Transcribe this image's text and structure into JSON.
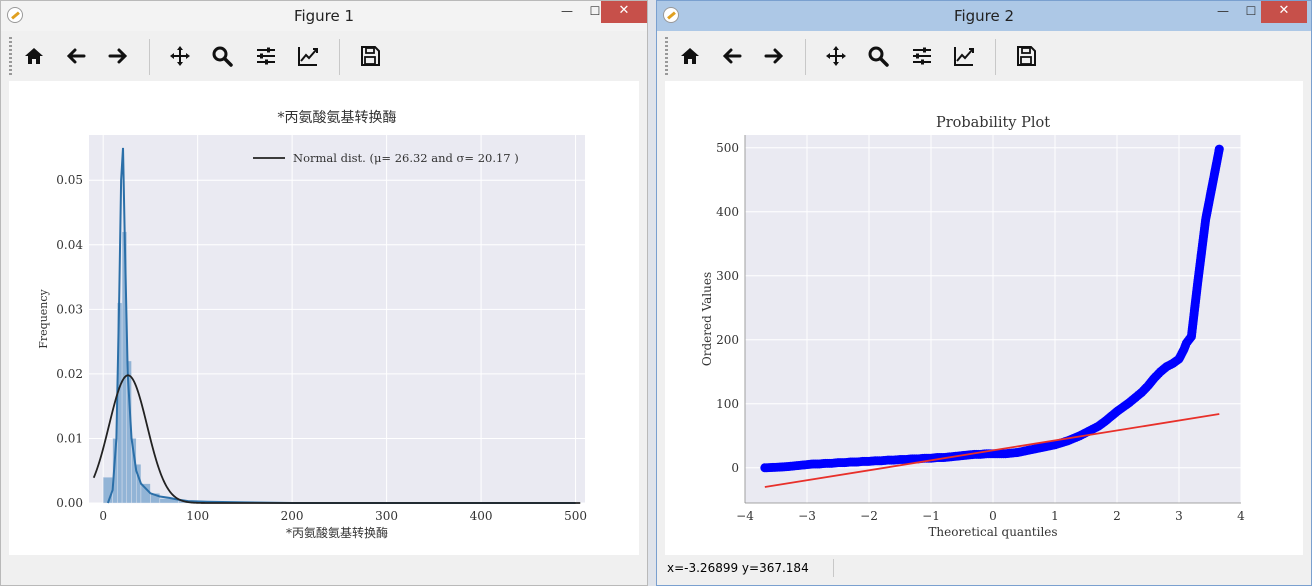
{
  "windows": [
    {
      "title": "Figure 1",
      "status": "",
      "toolbar": [
        "home-icon",
        "back-icon",
        "forward-icon",
        "pan-icon",
        "zoom-icon",
        "configure-icon",
        "edit-axis-icon",
        "save-icon"
      ]
    },
    {
      "title": "Figure 2",
      "status": "x=-3.26899     y=367.184",
      "toolbar": [
        "home-icon",
        "back-icon",
        "forward-icon",
        "pan-icon",
        "zoom-icon",
        "configure-icon",
        "edit-axis-icon",
        "save-icon"
      ]
    }
  ],
  "window_controls": {
    "minimize": "—",
    "maximize": "☐",
    "close": "✕"
  },
  "colors": {
    "hist": "#92b4d6",
    "kde": "#2b6fa8",
    "normal": "#222222",
    "points": "#0000ff",
    "fit": "#e8302a",
    "bg": "#eaeaf2"
  },
  "chart_data": [
    {
      "type": "histogram",
      "title": "*丙氨酸氨基转换酶",
      "xlabel": "*丙氨酸氨基转换酶",
      "ylabel": "Frequency",
      "xlim": [
        -15,
        510
      ],
      "ylim": [
        0,
        0.057
      ],
      "xticks": [
        0,
        100,
        200,
        300,
        400,
        500
      ],
      "yticks": [
        0.0,
        0.01,
        0.02,
        0.03,
        0.04,
        0.05
      ],
      "ytick_labels": [
        "0.00",
        "0.01",
        "0.02",
        "0.03",
        "0.04",
        "0.05"
      ],
      "legend_text": "Normal dist. (μ= 26.32 and σ= 20.17 )",
      "legend_position": "top-right",
      "grid": true,
      "bins": [
        {
          "x0": 0,
          "x1": 10,
          "h": 0.004
        },
        {
          "x0": 10,
          "x1": 15,
          "h": 0.01
        },
        {
          "x0": 15,
          "x1": 20,
          "h": 0.031
        },
        {
          "x0": 20,
          "x1": 25,
          "h": 0.042
        },
        {
          "x0": 25,
          "x1": 30,
          "h": 0.022
        },
        {
          "x0": 30,
          "x1": 35,
          "h": 0.01
        },
        {
          "x0": 35,
          "x1": 40,
          "h": 0.006
        },
        {
          "x0": 40,
          "x1": 50,
          "h": 0.003
        },
        {
          "x0": 50,
          "x1": 60,
          "h": 0.0015
        },
        {
          "x0": 60,
          "x1": 80,
          "h": 0.0007
        },
        {
          "x0": 80,
          "x1": 100,
          "h": 0.0004
        }
      ],
      "kde": [
        [
          5,
          0.0
        ],
        [
          10,
          0.002
        ],
        [
          14,
          0.01
        ],
        [
          17,
          0.032
        ],
        [
          19,
          0.05
        ],
        [
          21,
          0.055
        ],
        [
          23,
          0.04
        ],
        [
          26,
          0.02
        ],
        [
          30,
          0.01
        ],
        [
          35,
          0.005
        ],
        [
          40,
          0.003
        ],
        [
          50,
          0.0015
        ],
        [
          60,
          0.001
        ],
        [
          70,
          0.0008
        ],
        [
          80,
          0.0005
        ],
        [
          90,
          0.0003
        ],
        [
          110,
          0.0002
        ],
        [
          150,
          0.0001
        ],
        [
          200,
          0.0
        ],
        [
          500,
          0.0
        ]
      ],
      "normal": {
        "mu": 26.32,
        "sigma": 20.17,
        "x_from": -10,
        "x_to": 505
      }
    },
    {
      "type": "scatter",
      "title": "Probability Plot",
      "xlabel": "Theoretical quantiles",
      "ylabel": "Ordered Values",
      "xlim": [
        -4,
        4
      ],
      "ylim": [
        -55,
        520
      ],
      "xticks": [
        -4,
        -3,
        -2,
        -1,
        0,
        1,
        2,
        3,
        4
      ],
      "xtick_labels": [
        "−4",
        "−3",
        "−2",
        "−1",
        "0",
        "1",
        "2",
        "3",
        "4"
      ],
      "yticks": [
        0,
        100,
        200,
        300,
        400,
        500
      ],
      "grid": true,
      "points": [
        [
          -3.68,
          0
        ],
        [
          -3.45,
          1
        ],
        [
          -3.3,
          2
        ],
        [
          -3.2,
          3
        ],
        [
          -3.1,
          4
        ],
        [
          -3.0,
          5
        ],
        [
          -2.9,
          6
        ],
        [
          -2.8,
          6
        ],
        [
          -2.7,
          7
        ],
        [
          -2.6,
          7
        ],
        [
          -2.5,
          8
        ],
        [
          -2.4,
          8
        ],
        [
          -2.3,
          9
        ],
        [
          -2.2,
          9
        ],
        [
          -2.1,
          10
        ],
        [
          -2.0,
          10
        ],
        [
          -1.9,
          11
        ],
        [
          -1.8,
          11
        ],
        [
          -1.7,
          12
        ],
        [
          -1.6,
          12
        ],
        [
          -1.5,
          13
        ],
        [
          -1.4,
          13
        ],
        [
          -1.3,
          14
        ],
        [
          -1.2,
          14
        ],
        [
          -1.1,
          15
        ],
        [
          -1.0,
          15
        ],
        [
          -0.9,
          16
        ],
        [
          -0.8,
          16
        ],
        [
          -0.7,
          17
        ],
        [
          -0.6,
          18
        ],
        [
          -0.5,
          19
        ],
        [
          -0.4,
          20
        ],
        [
          -0.3,
          21
        ],
        [
          -0.2,
          21
        ],
        [
          -0.1,
          22
        ],
        [
          0.0,
          22
        ],
        [
          0.1,
          22
        ],
        [
          0.2,
          22
        ],
        [
          0.3,
          23
        ],
        [
          0.4,
          24
        ],
        [
          0.5,
          26
        ],
        [
          0.6,
          28
        ],
        [
          0.7,
          30
        ],
        [
          0.8,
          32
        ],
        [
          0.9,
          34
        ],
        [
          1.0,
          36
        ],
        [
          1.1,
          39
        ],
        [
          1.2,
          42
        ],
        [
          1.3,
          46
        ],
        [
          1.4,
          50
        ],
        [
          1.5,
          55
        ],
        [
          1.6,
          60
        ],
        [
          1.7,
          65
        ],
        [
          1.8,
          72
        ],
        [
          1.9,
          80
        ],
        [
          2.0,
          88
        ],
        [
          2.1,
          95
        ],
        [
          2.2,
          102
        ],
        [
          2.3,
          110
        ],
        [
          2.4,
          118
        ],
        [
          2.5,
          128
        ],
        [
          2.6,
          140
        ],
        [
          2.7,
          150
        ],
        [
          2.8,
          158
        ],
        [
          2.9,
          163
        ],
        [
          3.0,
          170
        ],
        [
          3.08,
          185
        ],
        [
          3.12,
          195
        ],
        [
          3.2,
          205
        ],
        [
          3.3,
          288
        ],
        [
          3.43,
          388
        ],
        [
          3.65,
          498
        ]
      ],
      "fit_line": {
        "x": [
          -3.68,
          3.65
        ],
        "y": [
          -30,
          84
        ]
      }
    }
  ]
}
